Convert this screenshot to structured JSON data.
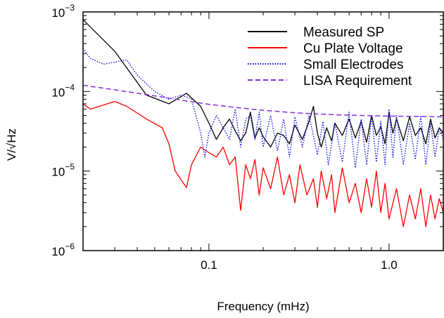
{
  "chart_data": {
    "type": "line",
    "title": "",
    "xlabel": "Frequency (mHz)",
    "ylabel": "V/√Hz",
    "x_scale": "log",
    "y_scale": "log",
    "xlim": [
      0.02,
      2.0
    ],
    "ylim": [
      1e-06,
      0.001
    ],
    "x_ticks": [
      {
        "value": 0.1,
        "label": "0.1"
      },
      {
        "value": 1.0,
        "label": "1.0"
      }
    ],
    "y_ticks": [
      {
        "value": 1e-06,
        "base": "10",
        "exp": "−6"
      },
      {
        "value": 1e-05,
        "base": "10",
        "exp": "−5"
      },
      {
        "value": 0.0001,
        "base": "10",
        "exp": "−4"
      },
      {
        "value": 0.001,
        "base": "10",
        "exp": "−3"
      }
    ],
    "legend_position": "top-right",
    "series": [
      {
        "name": "Measured SP",
        "color": "#000000",
        "dash": "solid",
        "x": [
          0.02,
          0.03,
          0.045,
          0.06,
          0.075,
          0.09,
          0.1,
          0.11,
          0.12,
          0.13,
          0.14,
          0.15,
          0.16,
          0.17,
          0.18,
          0.19,
          0.2,
          0.22,
          0.24,
          0.26,
          0.28,
          0.3,
          0.33,
          0.36,
          0.38,
          0.4,
          0.42,
          0.45,
          0.48,
          0.5,
          0.55,
          0.6,
          0.65,
          0.7,
          0.75,
          0.8,
          0.85,
          0.9,
          0.95,
          1.0,
          1.05,
          1.1,
          1.2,
          1.3,
          1.4,
          1.5,
          1.6,
          1.7,
          1.8,
          1.9,
          2.0
        ],
        "y": [
          0.0008,
          0.00032,
          9e-05,
          7e-05,
          9.5e-05,
          6.5e-05,
          4e-05,
          2.5e-05,
          3.5e-05,
          4.5e-05,
          3.2e-05,
          2.4e-05,
          3e-05,
          5.5e-05,
          2.6e-05,
          3.5e-05,
          2.7e-05,
          2e-05,
          3e-05,
          2.8e-05,
          2.2e-05,
          3.8e-05,
          2.5e-05,
          4.2e-05,
          6.5e-05,
          3e-05,
          2e-05,
          3.5e-05,
          2.4e-05,
          4e-05,
          2.8e-05,
          4.5e-05,
          2.6e-05,
          4.2e-05,
          2.3e-05,
          5e-05,
          2.8e-05,
          3.6e-05,
          2.2e-05,
          5.5e-05,
          3e-05,
          4.5e-05,
          2.4e-05,
          4.8e-05,
          2.8e-05,
          3.5e-05,
          2.2e-05,
          4.5e-05,
          2.6e-05,
          3.5e-05,
          3e-05
        ]
      },
      {
        "name": "Cu Plate Voltage",
        "color": "#ff0000",
        "dash": "solid",
        "x": [
          0.02,
          0.022,
          0.03,
          0.035,
          0.045,
          0.055,
          0.06,
          0.065,
          0.075,
          0.08,
          0.09,
          0.1,
          0.11,
          0.12,
          0.13,
          0.14,
          0.15,
          0.16,
          0.17,
          0.18,
          0.19,
          0.2,
          0.22,
          0.24,
          0.26,
          0.28,
          0.3,
          0.32,
          0.35,
          0.38,
          0.4,
          0.42,
          0.45,
          0.48,
          0.5,
          0.55,
          0.6,
          0.65,
          0.7,
          0.75,
          0.8,
          0.85,
          0.9,
          0.95,
          1.0,
          1.1,
          1.2,
          1.3,
          1.4,
          1.5,
          1.6,
          1.7,
          1.8,
          1.9,
          2.0
        ],
        "y": [
          7e-05,
          6e-05,
          7.5e-05,
          6.5e-05,
          4.5e-05,
          3.5e-05,
          2.2e-05,
          1e-05,
          6.2e-06,
          1.2e-05,
          2e-05,
          1.7e-05,
          1.5e-05,
          2e-05,
          1.2e-05,
          1.5e-05,
          3.2e-06,
          1.2e-05,
          8e-06,
          1.4e-05,
          5e-06,
          1.1e-05,
          6e-06,
          1.5e-05,
          5e-06,
          9e-06,
          4e-06,
          1.2e-05,
          5e-06,
          8e-06,
          3.5e-06,
          1e-05,
          4.5e-06,
          9e-06,
          3e-06,
          1.1e-05,
          4e-06,
          7e-06,
          3e-06,
          8e-06,
          3.5e-06,
          1e-05,
          3e-06,
          7e-06,
          2.5e-06,
          6e-06,
          2e-06,
          5e-06,
          2.5e-06,
          6e-06,
          2e-06,
          5e-06,
          2.5e-06,
          4.5e-06,
          3e-06
        ]
      },
      {
        "name": "Small Electrodes",
        "color": "#0000ee",
        "dash": "dotted",
        "x": [
          0.02,
          0.022,
          0.026,
          0.035,
          0.04,
          0.05,
          0.06,
          0.07,
          0.075,
          0.08,
          0.09,
          0.095,
          0.1,
          0.11,
          0.12,
          0.13,
          0.14,
          0.15,
          0.16,
          0.17,
          0.18,
          0.19,
          0.2,
          0.22,
          0.24,
          0.26,
          0.28,
          0.3,
          0.33,
          0.36,
          0.4,
          0.43,
          0.46,
          0.5,
          0.55,
          0.6,
          0.65,
          0.7,
          0.75,
          0.8,
          0.85,
          0.9,
          0.95,
          1.0,
          1.05,
          1.1,
          1.2,
          1.3,
          1.4,
          1.5,
          1.6,
          1.7,
          1.8,
          1.9,
          2.0
        ],
        "y": [
          0.00035,
          0.00026,
          0.00022,
          0.00025,
          0.00016,
          0.0001,
          8e-05,
          9e-05,
          8.5e-05,
          8e-05,
          3e-05,
          1.5e-05,
          3e-05,
          5e-05,
          3.5e-05,
          2.5e-05,
          6e-05,
          2e-05,
          4.5e-05,
          5e-05,
          2.5e-05,
          5.5e-05,
          2e-05,
          5e-05,
          1.8e-05,
          4.5e-05,
          1.5e-05,
          4.8e-05,
          2e-05,
          5e-05,
          1.6e-05,
          4.2e-05,
          1.2e-05,
          4e-05,
          1.3e-05,
          5.5e-05,
          1.1e-05,
          4.5e-05,
          1.2e-05,
          5e-05,
          1.3e-05,
          4.2e-05,
          1.2e-05,
          6e-05,
          1.5e-05,
          5e-05,
          1.2e-05,
          4e-05,
          1.4e-05,
          5e-05,
          1.2e-05,
          4e-05,
          1.5e-05,
          3.5e-05,
          2.5e-05
        ]
      },
      {
        "name": "LISA Requirement",
        "color": "#8a2be2",
        "dash": "dashed",
        "x": [
          0.02,
          0.03,
          0.05,
          0.07,
          0.1,
          0.15,
          0.2,
          0.3,
          0.5,
          0.7,
          1.0,
          1.5,
          2.0
        ],
        "y": [
          0.00012,
          0.000105,
          8.8e-05,
          7.8e-05,
          6.9e-05,
          6.2e-05,
          5.8e-05,
          5.4e-05,
          5.1e-05,
          5e-05,
          4.9e-05,
          4.85e-05,
          4.8e-05
        ]
      }
    ]
  }
}
